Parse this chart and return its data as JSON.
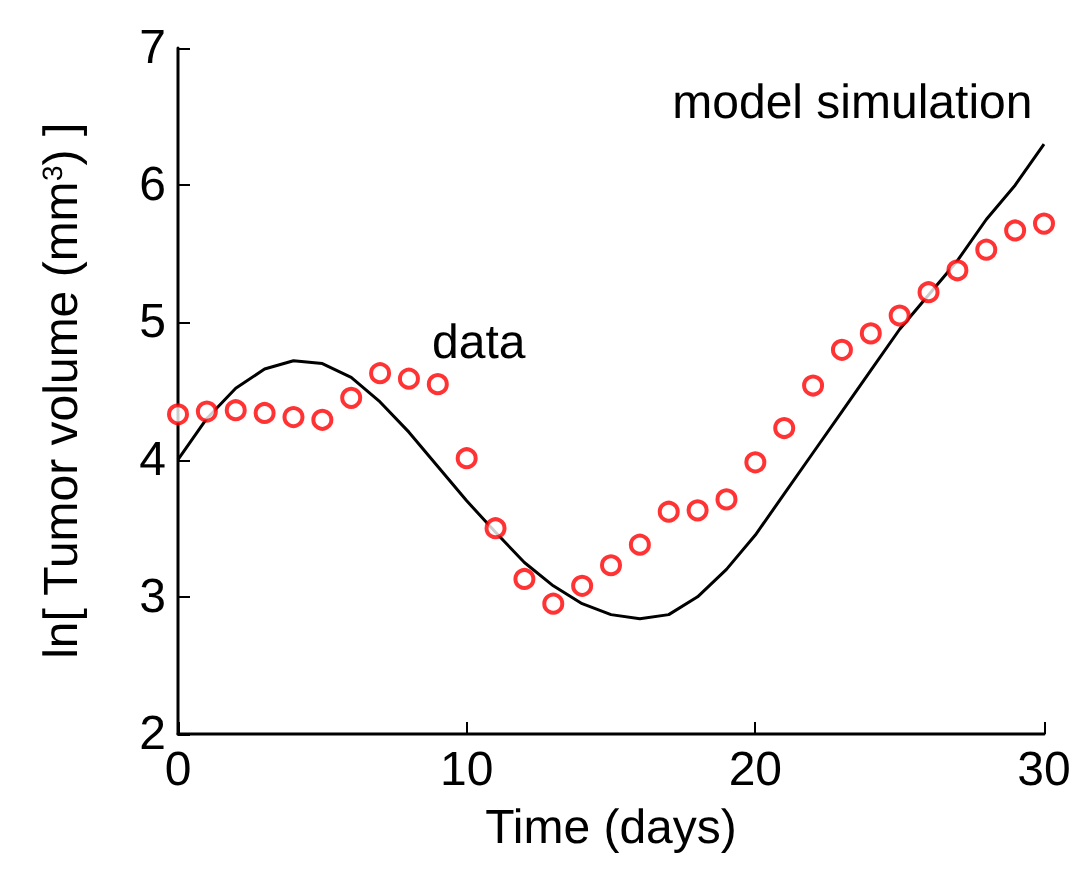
{
  "chart_data": {
    "type": "scatter",
    "xlabel": "Time (days)",
    "ylabel": "ln[ Tumor volume (mm$^{3}$) ]",
    "xlim": [
      0,
      30
    ],
    "xticks": [
      0,
      10,
      20,
      30
    ],
    "ylim": [
      2,
      7
    ],
    "yticks": [
      2,
      3,
      4,
      5,
      6,
      7
    ],
    "grid": false,
    "legend": false,
    "series": [
      {
        "name": "data",
        "type": "scatter",
        "marker": "circle",
        "color": "#ff0000",
        "x": [
          0,
          1,
          2,
          3,
          4,
          5,
          6,
          7,
          8,
          9,
          10,
          11,
          12,
          13,
          14,
          15,
          16,
          17,
          18,
          19,
          20,
          21,
          22,
          23,
          24,
          25,
          26,
          27,
          28,
          29,
          30
        ],
        "values": [
          4.33,
          4.35,
          4.36,
          4.34,
          4.31,
          4.29,
          4.45,
          4.63,
          4.59,
          4.55,
          4.01,
          3.5,
          3.13,
          2.95,
          3.08,
          3.23,
          3.38,
          3.62,
          3.63,
          3.71,
          3.98,
          4.23,
          4.54,
          4.8,
          4.92,
          5.05,
          5.22,
          5.38,
          5.53,
          5.67,
          5.72
        ]
      },
      {
        "name": "model simulation",
        "type": "line",
        "marker": "none",
        "line_style": "solid",
        "color": "#000000",
        "x": [
          0,
          1,
          2,
          3,
          4,
          5,
          6,
          7,
          8,
          9,
          10,
          11,
          12,
          13,
          14,
          15,
          16,
          17,
          18,
          19,
          20,
          21,
          22,
          23,
          24,
          25,
          26,
          27,
          28,
          29,
          30
        ],
        "values": [
          4.0,
          4.3,
          4.52,
          4.66,
          4.72,
          4.7,
          4.6,
          4.42,
          4.2,
          3.95,
          3.7,
          3.47,
          3.25,
          3.08,
          2.95,
          2.87,
          2.84,
          2.87,
          3.0,
          3.2,
          3.45,
          3.75,
          4.05,
          4.35,
          4.65,
          4.95,
          5.2,
          5.45,
          5.75,
          6.0,
          6.3
        ]
      }
    ]
  }
}
